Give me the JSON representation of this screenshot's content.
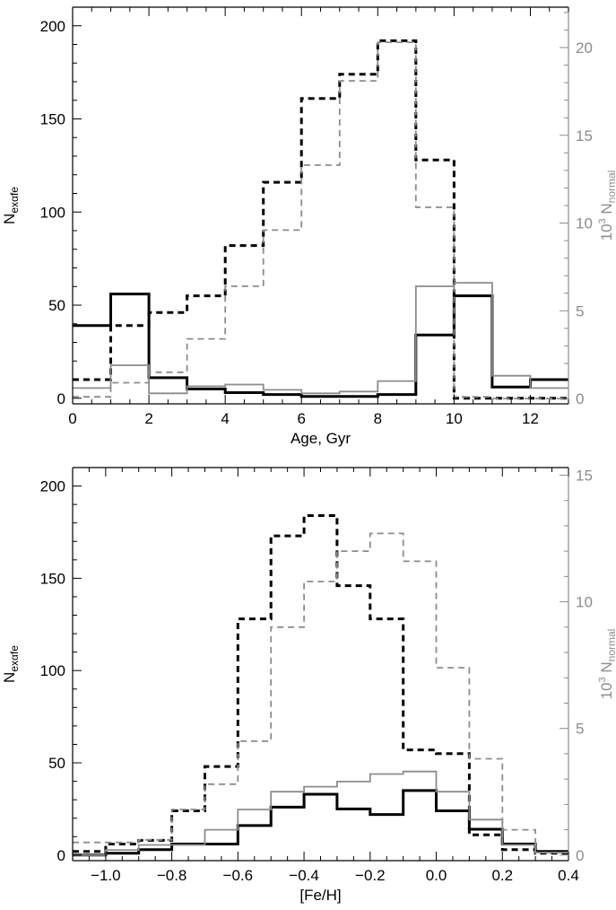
{
  "colors": {
    "black": "#000000",
    "gray": "#8c8c8c"
  },
  "chart_data": [
    {
      "type": "line",
      "step": true,
      "xlabel": "Age, Gyr",
      "ylabel": "N",
      "ylabel_sub": "exαfe",
      "y2label": "10",
      "y2label_sup": "3",
      "y2label_main": " N",
      "y2label_sub": "normal",
      "xlim": [
        0,
        13
      ],
      "ylim": [
        -3,
        210
      ],
      "y2lim": [
        -0.3,
        22.3
      ],
      "xticks": [
        0,
        2,
        4,
        6,
        8,
        10,
        12
      ],
      "xtick_labels": [
        "0",
        "2",
        "4",
        "6",
        "8",
        "10",
        "12"
      ],
      "yticks": [
        0,
        50,
        100,
        150,
        200
      ],
      "ytick_labels": [
        "0",
        "50",
        "100",
        "150",
        "200"
      ],
      "y2ticks": [
        0,
        5,
        10,
        15,
        20
      ],
      "y2tick_labels": [
        "0",
        "5",
        "10",
        "15",
        "20"
      ],
      "bin_edges": [
        0,
        1,
        2,
        3,
        4,
        5,
        6,
        7,
        8,
        9,
        10,
        11,
        12,
        13
      ],
      "series": [
        {
          "axis": "left",
          "style": "solid-black",
          "values": [
            39,
            56,
            11,
            5,
            3,
            2,
            1,
            1,
            2,
            34,
            55,
            6,
            10
          ]
        },
        {
          "axis": "left",
          "style": "dashed-black",
          "values": [
            10,
            39,
            46,
            55,
            82,
            116,
            161,
            174,
            192,
            128,
            0,
            0,
            0
          ]
        },
        {
          "axis": "right",
          "style": "solid-gray",
          "values": [
            0.6,
            1.9,
            0.3,
            0.7,
            0.8,
            0.5,
            0.3,
            0.4,
            1.0,
            6.4,
            6.6,
            1.3,
            0.6
          ]
        },
        {
          "axis": "right",
          "style": "dashed-gray",
          "values": [
            0.1,
            0.9,
            1.5,
            3.4,
            6.4,
            9.6,
            13.3,
            18.1,
            20.3,
            10.9,
            0.1,
            0,
            0
          ]
        }
      ]
    },
    {
      "type": "line",
      "step": true,
      "xlabel": "[Fe/H]",
      "ylabel": "N",
      "ylabel_sub": "exαfe",
      "y2label": "10",
      "y2label_sup": "3",
      "y2label_main": " N",
      "y2label_sub": "normal",
      "xlim": [
        -1.1,
        0.4
      ],
      "ylim": [
        -3,
        210
      ],
      "y2lim": [
        -0.22,
        15.3
      ],
      "xticks": [
        -1.0,
        -0.8,
        -0.6,
        -0.4,
        -0.2,
        0.0,
        0.2,
        0.4
      ],
      "xtick_labels": [
        "−1.0",
        "−0.8",
        "−0.6",
        "−0.4",
        "−0.2",
        "0.0",
        "0.2",
        "0.4"
      ],
      "yticks": [
        0,
        50,
        100,
        150,
        200
      ],
      "ytick_labels": [
        "0",
        "50",
        "100",
        "150",
        "200"
      ],
      "y2ticks": [
        0,
        5,
        10,
        15
      ],
      "y2tick_labels": [
        "0",
        "5",
        "10",
        "15"
      ],
      "bin_edges": [
        -1.1,
        -1.0,
        -0.9,
        -0.8,
        -0.7,
        -0.6,
        -0.5,
        -0.4,
        -0.3,
        -0.2,
        -0.1,
        0.0,
        0.1,
        0.2,
        0.3,
        0.4
      ],
      "series": [
        {
          "axis": "left",
          "style": "solid-black",
          "values": [
            0,
            1,
            3,
            6,
            6,
            16,
            26,
            33,
            25,
            22,
            35,
            24,
            14,
            6,
            2
          ]
        },
        {
          "axis": "left",
          "style": "dashed-black",
          "values": [
            2,
            6,
            8,
            24,
            48,
            128,
            173,
            184,
            146,
            128,
            57,
            55,
            11,
            3,
            1
          ]
        },
        {
          "axis": "right",
          "style": "solid-gray",
          "values": [
            0.0,
            0.2,
            0.4,
            0.4,
            1.0,
            1.8,
            2.5,
            2.7,
            2.9,
            3.2,
            3.3,
            2.5,
            1.4,
            0.4,
            0.1
          ]
        },
        {
          "axis": "right",
          "style": "dashed-gray",
          "values": [
            0.5,
            0.5,
            0.6,
            1.8,
            2.8,
            4.5,
            9.0,
            10.8,
            12.0,
            12.7,
            11.6,
            7.4,
            3.8,
            1.0,
            0.1
          ]
        }
      ]
    }
  ]
}
